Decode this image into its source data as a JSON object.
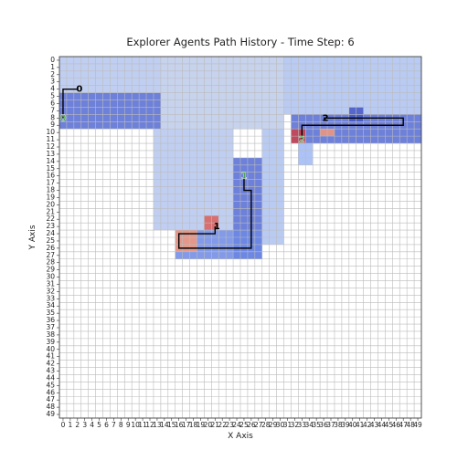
{
  "chart_data": {
    "type": "heatmap-paths",
    "title": "Explorer Agents Path History - Time Step: 6",
    "x_label": "X Axis",
    "y_label": "Y Axis",
    "colormap": "coolwarm",
    "vlim": [
      -1,
      1
    ],
    "grid": true,
    "xlim": [
      -0.5,
      49.5
    ],
    "ylim": [
      49.5,
      -0.5
    ],
    "xticks": [
      0,
      1,
      2,
      3,
      4,
      5,
      6,
      7,
      8,
      9,
      10,
      11,
      12,
      13,
      14,
      15,
      16,
      17,
      18,
      19,
      20,
      21,
      22,
      23,
      24,
      25,
      26,
      27,
      28,
      29,
      30,
      31,
      32,
      33,
      34,
      35,
      36,
      37,
      38,
      39,
      40,
      41,
      42,
      43,
      44,
      45,
      46,
      47,
      48,
      49
    ],
    "yticks": [
      0,
      1,
      2,
      3,
      4,
      5,
      6,
      7,
      8,
      9,
      10,
      11,
      12,
      13,
      14,
      15,
      16,
      17,
      18,
      19,
      20,
      21,
      22,
      23,
      24,
      25,
      26,
      27,
      28,
      29,
      30,
      31,
      32,
      33,
      34,
      35,
      36,
      37,
      38,
      39,
      40,
      41,
      42,
      43,
      44,
      45,
      46,
      47,
      48,
      49
    ],
    "regions": [
      {
        "x": [
          0,
          13
        ],
        "y": [
          0,
          4
        ],
        "value": -0.25
      },
      {
        "x": [
          0,
          13
        ],
        "y": [
          5,
          9
        ],
        "value": -0.85
      },
      {
        "x": [
          14,
          30
        ],
        "y": [
          0,
          9
        ],
        "value": -0.2
      },
      {
        "x": [
          13,
          23
        ],
        "y": [
          10,
          23
        ],
        "value": -0.25
      },
      {
        "x": [
          28,
          30
        ],
        "y": [
          10,
          25
        ],
        "value": -0.3
      },
      {
        "x": [
          24,
          27
        ],
        "y": [
          14,
          27
        ],
        "value": -0.85
      },
      {
        "x": [
          16,
          27
        ],
        "y": [
          24,
          27
        ],
        "value": -0.7
      },
      {
        "x": [
          16,
          18
        ],
        "y": [
          24,
          26
        ],
        "value": 0.5
      },
      {
        "x": [
          20,
          21
        ],
        "y": [
          22,
          23
        ],
        "value": 0.7
      },
      {
        "x": [
          31,
          49
        ],
        "y": [
          0,
          7
        ],
        "value": -0.3
      },
      {
        "x": [
          32,
          49
        ],
        "y": [
          8,
          11
        ],
        "value": -0.85
      },
      {
        "x": [
          32,
          33
        ],
        "y": [
          10,
          11
        ],
        "value": 0.8
      },
      {
        "x": [
          33,
          34
        ],
        "y": [
          12,
          14
        ],
        "value": -0.4
      },
      {
        "x": [
          36,
          37
        ],
        "y": [
          10,
          10
        ],
        "value": 0.5
      },
      {
        "x": [
          40,
          41
        ],
        "y": [
          7,
          8
        ],
        "value": -0.95
      }
    ],
    "paths": [
      {
        "name": "0",
        "color": "#000000",
        "x": [
          0,
          0,
          2
        ],
        "y": [
          8,
          4,
          4
        ]
      },
      {
        "name": "1",
        "color": "#000000",
        "x": [
          25,
          25,
          26,
          26,
          16,
          16,
          21,
          21
        ],
        "y": [
          16,
          18,
          18,
          26,
          26,
          24,
          24,
          23
        ]
      },
      {
        "name": "2",
        "color": "#000000",
        "x": [
          33,
          33,
          47,
          47,
          36
        ],
        "y": [
          11,
          9,
          9,
          8,
          8
        ]
      }
    ]
  }
}
